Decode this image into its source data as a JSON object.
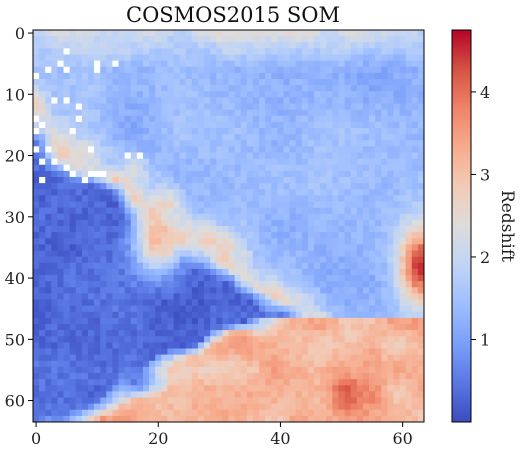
{
  "chart_data": {
    "type": "heatmap",
    "title": "COSMOS2015 SOM",
    "grid_size": 64,
    "x_ticks": [
      0,
      20,
      40,
      60
    ],
    "y_ticks": [
      0,
      10,
      20,
      30,
      40,
      50,
      60
    ],
    "xlim": [
      0,
      63
    ],
    "ylim": [
      0,
      63
    ],
    "y_axis_inverted": true,
    "colorbar": {
      "label": "Redshift",
      "min": 0.0,
      "max": 4.75,
      "ticks": [
        1,
        2,
        3,
        4
      ],
      "colormap": "coolwarm",
      "cmap_colors": [
        "#3b4cc0",
        "#5977e3",
        "#7b9ff9",
        "#9ebeff",
        "#c0d4f5",
        "#dddcdc",
        "#f2cbb7",
        "#f7ac8e",
        "#ee8468",
        "#d65244",
        "#b40426"
      ]
    },
    "blank_cells_color": "#ffffff",
    "structure": [
      {
        "region": "upper-right background",
        "redshift_range": [
          1.2,
          1.6
        ]
      },
      {
        "region": "top band near row 0",
        "redshift_range": [
          1.8,
          2.4
        ]
      },
      {
        "region": "lower-left quadrant",
        "redshift_range": [
          0.05,
          0.4
        ]
      },
      {
        "region": "bottom-right corner",
        "redshift_range": [
          2.7,
          3.6
        ]
      },
      {
        "region": "right edge around rows 30-45",
        "redshift_range": [
          3.0,
          4.7
        ]
      },
      {
        "region": "diagonal transition ridge",
        "redshift_range": [
          1.8,
          2.8
        ]
      }
    ]
  }
}
